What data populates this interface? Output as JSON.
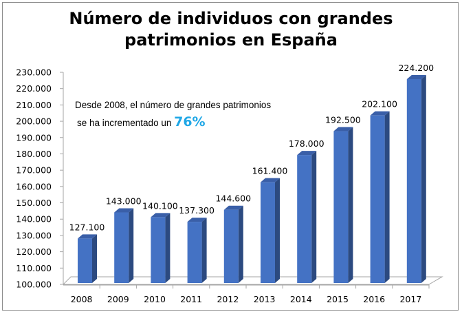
{
  "chart_data": {
    "type": "bar",
    "title_line1": "Número de individuos con grandes",
    "title_line2": "patrimonios en España",
    "categories": [
      "2008",
      "2009",
      "2010",
      "2011",
      "2012",
      "2013",
      "2014",
      "2015",
      "2016",
      "2017"
    ],
    "values": [
      127100,
      143000,
      140100,
      137300,
      144600,
      161400,
      178000,
      192500,
      202100,
      224200
    ],
    "value_labels": [
      "127.100",
      "143.000",
      "140.100",
      "137.300",
      "144.600",
      "161.400",
      "178.000",
      "192.500",
      "202.100",
      "224.200"
    ],
    "y_ticks": [
      "100.000",
      "110.000",
      "120.000",
      "130.000",
      "140.000",
      "150.000",
      "160.000",
      "170.000",
      "180.000",
      "190.000",
      "200.000",
      "210.000",
      "220.000",
      "230.000"
    ],
    "ylim": [
      100000,
      230000
    ],
    "xlabel": "",
    "ylabel": "",
    "grid": false,
    "bar_color": "#4472c4",
    "bar_side_color": "#2c4a80",
    "annotation": {
      "line1": "Desde 2008, el número de grandes patrimonios",
      "line2": "se ha incrementado un",
      "highlight": "76%",
      "highlight_color": "#1fa7e6"
    }
  }
}
